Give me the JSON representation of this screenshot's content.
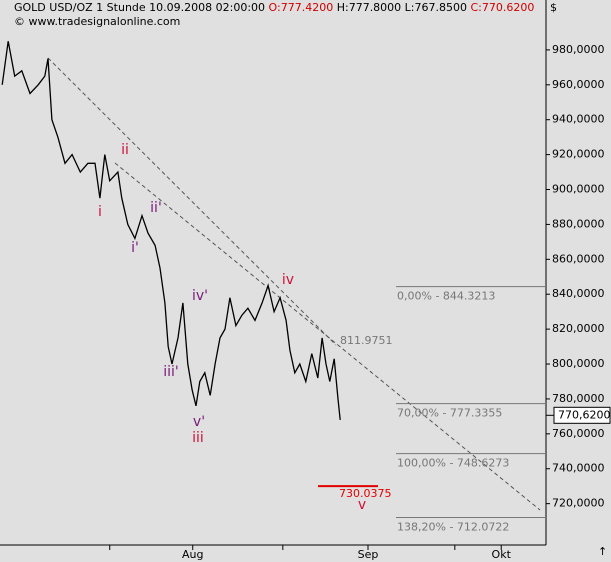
{
  "chart_data": {
    "type": "line",
    "header": [
      {
        "text": "GOLD USD/OZ 1 Stunde  10.09.2008 02:00:00 ",
        "color": "#000000"
      },
      {
        "text": "O:777.4200",
        "color": "#d00000"
      },
      {
        "text": " H:777.8000  L:767.8500 ",
        "color": "#000000"
      },
      {
        "text": "C:770.6200",
        "color": "#d00000"
      }
    ],
    "watermark": "© www.tradesignalonline.com",
    "currency": "$",
    "corner_arrow": "↑",
    "color": "#000000",
    "x": [
      0.4,
      1.5,
      2.7,
      4.0,
      5.5,
      7.0,
      8.2,
      8.8,
      9.5,
      10.6,
      11.9,
      13.2,
      14.7,
      16.1,
      17.4,
      18.3,
      19.2,
      20.1,
      21.6,
      22.3,
      23.4,
      24.7,
      26.0,
      27.1,
      28.4,
      29.3,
      30.2,
      30.8,
      31.5,
      32.6,
      33.5,
      34.4,
      35.2,
      35.9,
      36.6,
      37.5,
      38.5,
      39.4,
      40.3,
      41.2,
      42.1,
      43.2,
      44.3,
      45.4,
      46.7,
      48.0,
      49.1,
      50.2,
      51.3,
      52.4,
      53.1,
      54.0,
      54.9,
      56.0,
      57.1,
      58.2,
      59.0,
      59.7,
      60.4,
      61.2,
      61.9,
      62.3
    ],
    "values": [
      960,
      985,
      965,
      968,
      955,
      960,
      965,
      975,
      940,
      930,
      915,
      920,
      910,
      915,
      915,
      895,
      920,
      905,
      910,
      895,
      880,
      872,
      885,
      875,
      868,
      855,
      835,
      810,
      800,
      815,
      835,
      800,
      785,
      776,
      790,
      795,
      782,
      800,
      815,
      820,
      838,
      822,
      828,
      832,
      825,
      835,
      845,
      830,
      838,
      825,
      808,
      795,
      800,
      790,
      806,
      792,
      815,
      800,
      790,
      803,
      780,
      768
    ],
    "xlim": [
      0,
      100
    ],
    "ylim": [
      696.3,
      1000
    ],
    "yticks": [
      {
        "value": 720,
        "label": "720,0000"
      },
      {
        "value": 740,
        "label": "740,0000"
      },
      {
        "value": 760,
        "label": "760,0000"
      },
      {
        "value": 780,
        "label": "780,0000"
      },
      {
        "value": 800,
        "label": "800,0000"
      },
      {
        "value": 820,
        "label": "820,0000"
      },
      {
        "value": 840,
        "label": "840,0000"
      },
      {
        "value": 860,
        "label": "860,0000"
      },
      {
        "value": 880,
        "label": "880,0000"
      },
      {
        "value": 900,
        "label": "900,0000"
      },
      {
        "value": 920,
        "label": "920,0000"
      },
      {
        "value": 940,
        "label": "940,0000"
      },
      {
        "value": 960,
        "label": "960,0000"
      },
      {
        "value": 980,
        "label": "980,0000"
      }
    ],
    "xticks": [
      {
        "value": 35.3,
        "label": "Aug"
      },
      {
        "value": 67.4,
        "label": "Sep"
      },
      {
        "value": 91.8,
        "label": "Okt"
      }
    ],
    "minor_xticks": [
      20.1,
      51.8,
      83.3
    ],
    "last_price": {
      "value": 770.62,
      "label": "770,6200"
    },
    "fib_levels": [
      {
        "value": 844.3213,
        "label": "0,00% - 844.3213"
      },
      {
        "value": 777.3355,
        "label": "70,00% - 777.3355"
      },
      {
        "value": 748.6273,
        "label": "100,00% - 748.6273"
      },
      {
        "value": 712.0722,
        "label": "138,20% - 712.0722"
      }
    ],
    "marker": {
      "value": 811.9751,
      "label": "811.9751"
    },
    "target": {
      "value": 730.0375,
      "label": "730.0375",
      "color": "#e00000"
    },
    "waves": [
      {
        "text": "i",
        "color": "#d0103a"
      },
      {
        "text": "ii",
        "color": "#d0103a"
      },
      {
        "text": "iii",
        "color": "#d0103a"
      },
      {
        "text": "iv",
        "color": "#d0103a"
      },
      {
        "text": "v",
        "color": "#d0103a"
      },
      {
        "text": "i'",
        "color": "#7a1a7a"
      },
      {
        "text": "ii'",
        "color": "#7a1a7a"
      },
      {
        "text": "iii'",
        "color": "#7a1a7a"
      },
      {
        "text": "iv'",
        "color": "#7a1a7a"
      },
      {
        "text": "v'",
        "color": "#7a1a7a"
      }
    ]
  }
}
